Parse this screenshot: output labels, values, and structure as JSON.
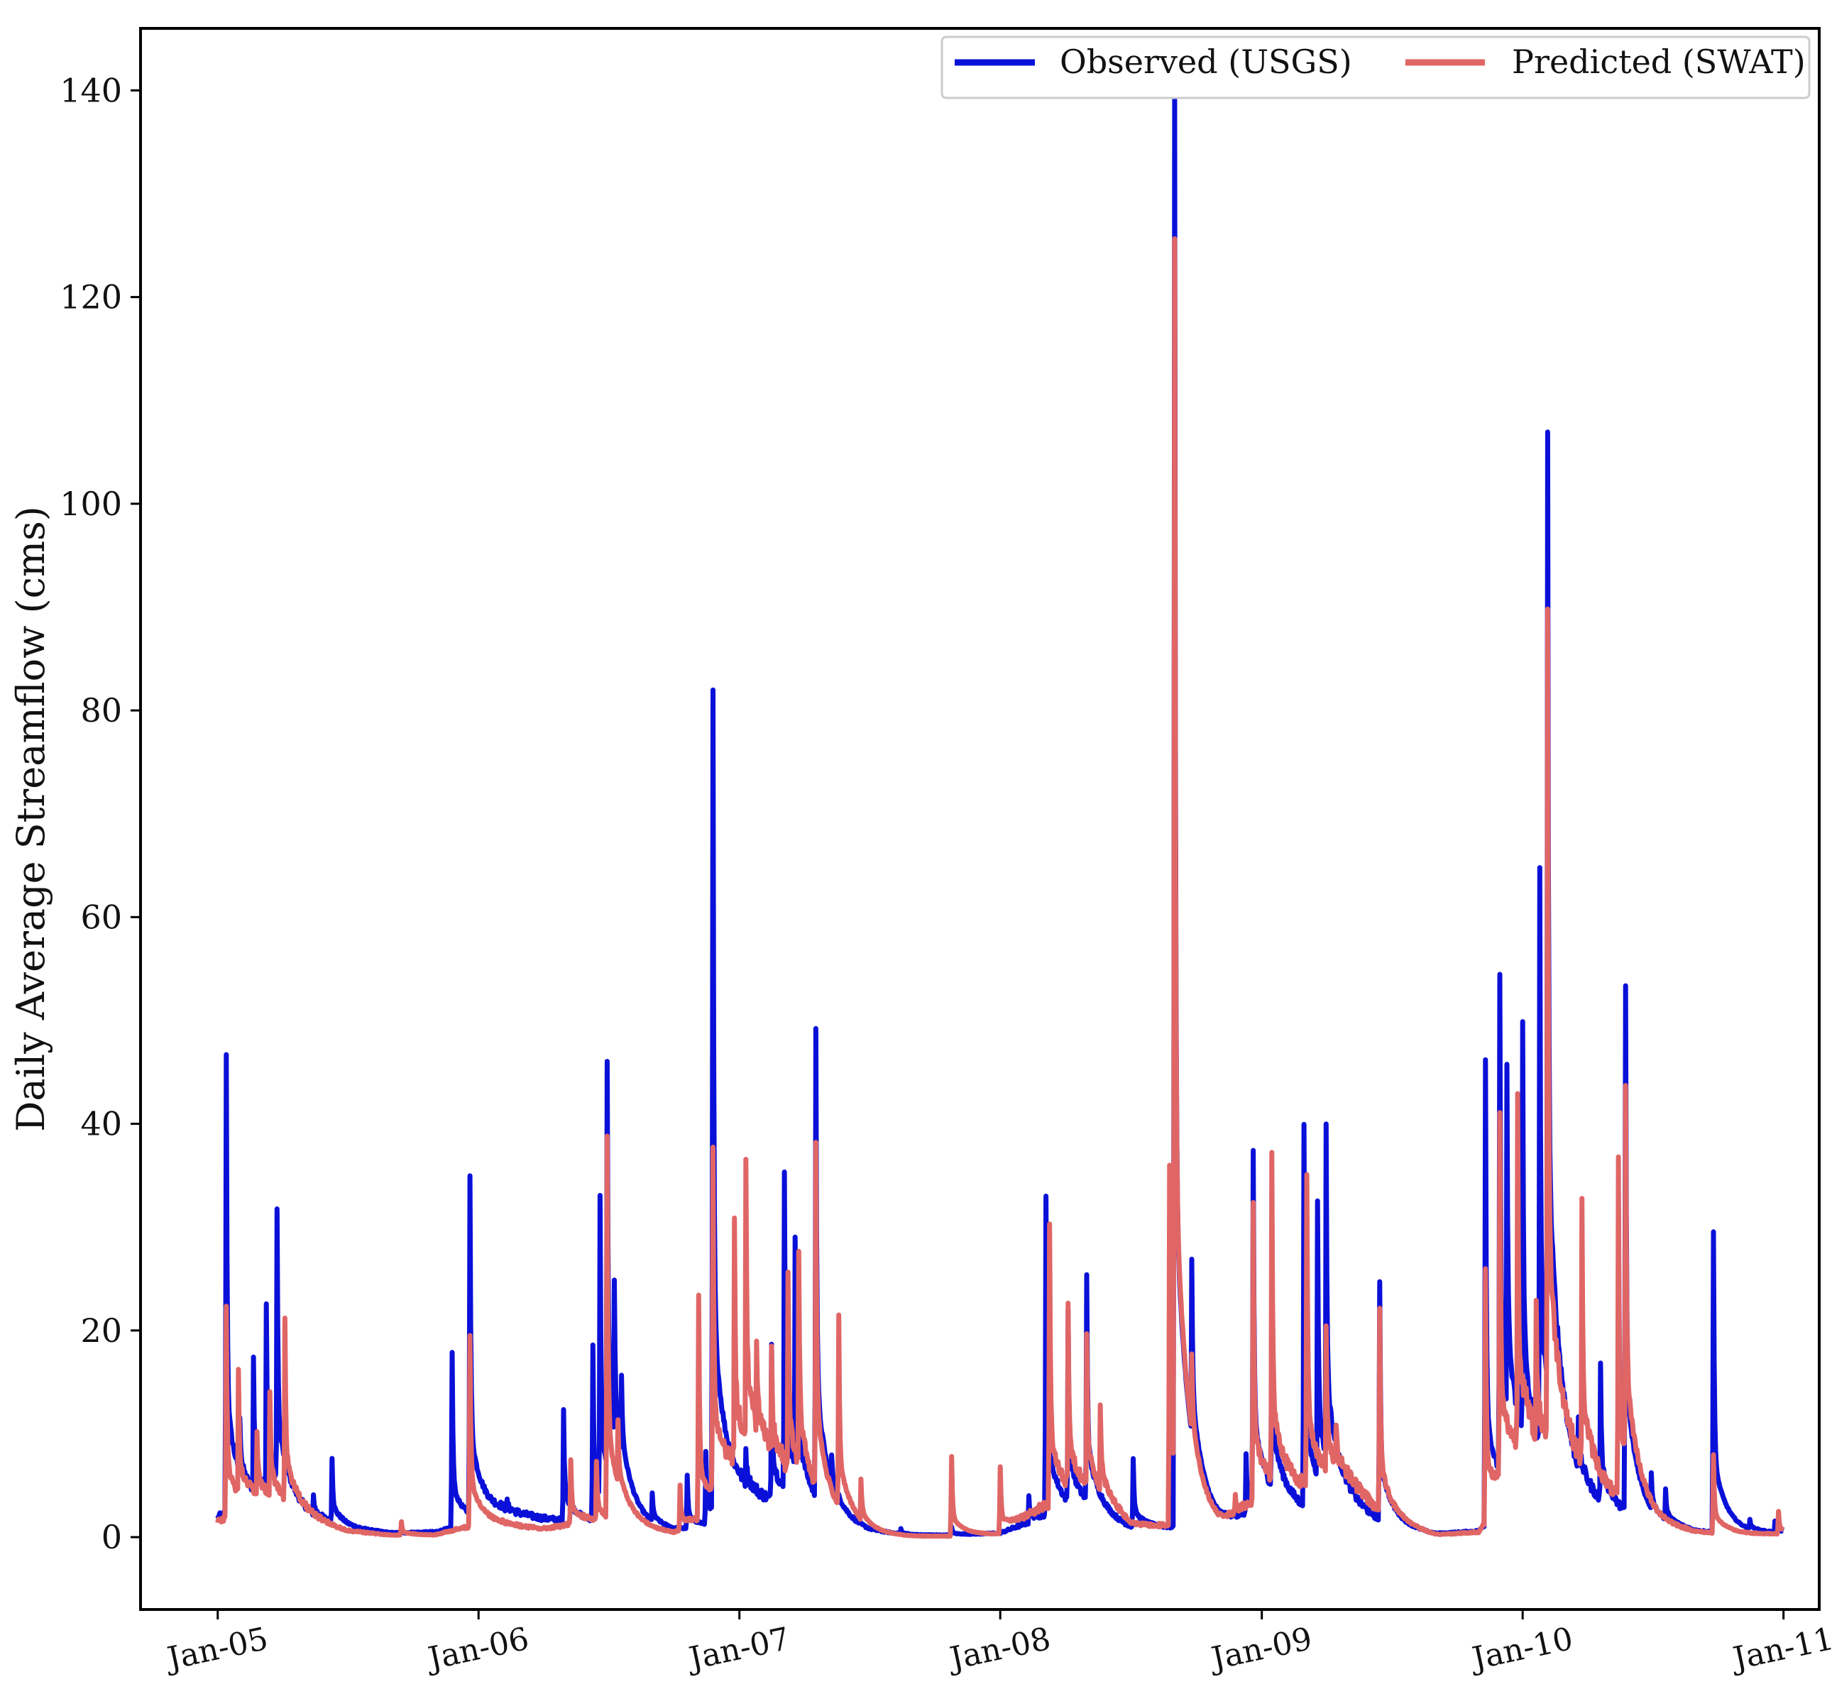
{
  "chart_data": {
    "type": "line",
    "title": "",
    "xlabel": "",
    "ylabel": "Daily Average Streamflow (cms)",
    "x_ticks": [
      "Jan-05",
      "Jan-06",
      "Jan-07",
      "Jan-08",
      "Jan-09",
      "Jan-10",
      "Jan-11"
    ],
    "y_ticks": [
      "0",
      "20",
      "40",
      "60",
      "80",
      "100",
      "120",
      "140"
    ],
    "xlim": [
      "2004-09-15",
      "2011-02-20"
    ],
    "ylim": [
      -7,
      146
    ],
    "grid": false,
    "legend_position": "top-right",
    "x_tick_rotation_deg": -12,
    "series": [
      {
        "name": "Observed (USGS)",
        "color": "#0a10d8",
        "base": [
          [
            "2005-01-01",
            2.0
          ],
          [
            "2005-03-01",
            3.0
          ],
          [
            "2005-05-01",
            2.0
          ],
          [
            "2005-07-01",
            0.8
          ],
          [
            "2005-09-01",
            0.4
          ],
          [
            "2005-11-01",
            0.5
          ],
          [
            "2005-12-15",
            1.2
          ],
          [
            "2006-02-01",
            2.3
          ],
          [
            "2006-04-01",
            1.8
          ],
          [
            "2006-06-01",
            1.4
          ],
          [
            "2006-08-01",
            0.9
          ],
          [
            "2006-10-01",
            0.6
          ],
          [
            "2006-11-15",
            1.0
          ],
          [
            "2007-01-01",
            3.8
          ],
          [
            "2007-03-01",
            3.2
          ],
          [
            "2007-05-01",
            1.6
          ],
          [
            "2007-07-01",
            0.6
          ],
          [
            "2007-09-01",
            0.2
          ],
          [
            "2007-11-01",
            0.2
          ],
          [
            "2008-01-01",
            0.4
          ],
          [
            "2008-03-01",
            2.0
          ],
          [
            "2008-05-01",
            2.2
          ],
          [
            "2008-07-01",
            0.8
          ],
          [
            "2008-09-01",
            0.9
          ],
          [
            "2008-11-01",
            0.9
          ],
          [
            "2009-01-01",
            3.0
          ],
          [
            "2009-03-01",
            2.5
          ],
          [
            "2009-05-01",
            3.0
          ],
          [
            "2009-07-01",
            1.0
          ],
          [
            "2009-09-01",
            0.3
          ],
          [
            "2009-11-01",
            0.6
          ],
          [
            "2010-01-01",
            5.5
          ],
          [
            "2010-03-01",
            4.5
          ],
          [
            "2010-05-01",
            2.5
          ],
          [
            "2010-07-01",
            1.0
          ],
          [
            "2010-09-01",
            0.5
          ],
          [
            "2010-11-01",
            0.4
          ],
          [
            "2011-01-01",
            0.4
          ]
        ],
        "events": [
          [
            "2005-01-13",
            46.5
          ],
          [
            "2005-02-01",
            8.0
          ],
          [
            "2005-02-20",
            15.5
          ],
          [
            "2005-03-10",
            20.5
          ],
          [
            "2005-03-25",
            29.0
          ],
          [
            "2005-05-15",
            3.5
          ],
          [
            "2005-06-10",
            7.5
          ],
          [
            "2005-11-25",
            17.8
          ],
          [
            "2005-12-20",
            33.8
          ],
          [
            "2006-02-10",
            3.0
          ],
          [
            "2006-04-30",
            12.3
          ],
          [
            "2006-06-10",
            18.5
          ],
          [
            "2006-06-20",
            30.3
          ],
          [
            "2006-06-30",
            40.3
          ],
          [
            "2006-07-10",
            15.8
          ],
          [
            "2006-07-20",
            8.5
          ],
          [
            "2006-09-01",
            3.5
          ],
          [
            "2006-10-20",
            6.0
          ],
          [
            "2006-11-15",
            8.0
          ],
          [
            "2006-11-25",
            80.8
          ],
          [
            "2007-01-10",
            7.0
          ],
          [
            "2007-02-15",
            18.8
          ],
          [
            "2007-03-05",
            34.0
          ],
          [
            "2007-03-20",
            25.0
          ],
          [
            "2007-04-18",
            47.5
          ],
          [
            "2007-05-10",
            4.0
          ],
          [
            "2007-08-15",
            0.8
          ],
          [
            "2007-10-25",
            1.0
          ],
          [
            "2008-02-10",
            4.0
          ],
          [
            "2008-03-05",
            32.8
          ],
          [
            "2008-04-05",
            20.5
          ],
          [
            "2008-05-01",
            24.0
          ],
          [
            "2008-07-05",
            7.5
          ],
          [
            "2008-09-01",
            140.0
          ],
          [
            "2008-09-25",
            17.8
          ],
          [
            "2008-12-10",
            8.0
          ],
          [
            "2008-12-20",
            36.3
          ],
          [
            "2009-01-15",
            26.0
          ],
          [
            "2009-03-01",
            39.0
          ],
          [
            "2009-03-20",
            29.5
          ],
          [
            "2009-04-01",
            34.5
          ],
          [
            "2009-06-15",
            24.3
          ],
          [
            "2009-11-10",
            46.3
          ],
          [
            "2009-11-30",
            51.0
          ],
          [
            "2009-12-10",
            37.5
          ],
          [
            "2010-01-01",
            44.5
          ],
          [
            "2010-01-25",
            61.0
          ],
          [
            "2010-02-05",
            97.2
          ],
          [
            "2010-03-20",
            9.0
          ],
          [
            "2010-04-20",
            16.0
          ],
          [
            "2010-05-25",
            52.8
          ],
          [
            "2010-06-30",
            4.5
          ],
          [
            "2010-07-20",
            3.8
          ],
          [
            "2010-09-25",
            29.5
          ],
          [
            "2010-11-15",
            1.3
          ],
          [
            "2010-12-20",
            1.5
          ]
        ]
      },
      {
        "name": "Predicted (SWAT)",
        "color": "#e06666",
        "base": [
          [
            "2005-01-01",
            1.5
          ],
          [
            "2005-03-01",
            3.5
          ],
          [
            "2005-05-01",
            2.0
          ],
          [
            "2005-07-01",
            0.6
          ],
          [
            "2005-09-01",
            0.2
          ],
          [
            "2005-11-01",
            0.2
          ],
          [
            "2005-12-15",
            1.0
          ],
          [
            "2006-02-01",
            1.2
          ],
          [
            "2006-04-01",
            0.8
          ],
          [
            "2006-06-01",
            1.5
          ],
          [
            "2006-08-01",
            1.0
          ],
          [
            "2006-10-01",
            0.4
          ],
          [
            "2006-11-15",
            2.0
          ],
          [
            "2007-01-01",
            7.0
          ],
          [
            "2007-03-01",
            6.0
          ],
          [
            "2007-05-01",
            1.6
          ],
          [
            "2007-07-01",
            0.3
          ],
          [
            "2007-09-01",
            0.1
          ],
          [
            "2007-11-01",
            0.1
          ],
          [
            "2008-01-01",
            0.3
          ],
          [
            "2008-03-01",
            3.0
          ],
          [
            "2008-05-01",
            4.0
          ],
          [
            "2008-07-01",
            1.0
          ],
          [
            "2008-09-01",
            1.2
          ],
          [
            "2008-11-01",
            0.8
          ],
          [
            "2009-01-01",
            4.0
          ],
          [
            "2009-03-01",
            4.5
          ],
          [
            "2009-05-01",
            5.0
          ],
          [
            "2009-07-01",
            1.5
          ],
          [
            "2009-09-01",
            0.2
          ],
          [
            "2009-11-01",
            0.5
          ],
          [
            "2010-01-01",
            8.0
          ],
          [
            "2010-03-01",
            7.0
          ],
          [
            "2010-05-01",
            4.0
          ],
          [
            "2010-07-01",
            1.5
          ],
          [
            "2010-09-01",
            0.5
          ],
          [
            "2010-11-01",
            0.3
          ],
          [
            "2011-01-01",
            0.3
          ]
        ],
        "events": [
          [
            "2005-01-13",
            22.5
          ],
          [
            "2005-01-30",
            14.5
          ],
          [
            "2005-02-25",
            9.5
          ],
          [
            "2005-03-15",
            13.5
          ],
          [
            "2005-04-05",
            19.8
          ],
          [
            "2005-09-15",
            1.5
          ],
          [
            "2005-12-20",
            19.5
          ],
          [
            "2006-05-10",
            7.5
          ],
          [
            "2006-06-15",
            7.0
          ],
          [
            "2006-06-30",
            38.0
          ],
          [
            "2006-07-15",
            7.0
          ],
          [
            "2006-10-10",
            5.0
          ],
          [
            "2006-11-05",
            23.3
          ],
          [
            "2006-11-25",
            36.3
          ],
          [
            "2006-12-25",
            28.8
          ],
          [
            "2007-01-10",
            34.5
          ],
          [
            "2007-01-25",
            15.5
          ],
          [
            "2007-02-15",
            15.8
          ],
          [
            "2007-03-10",
            25.0
          ],
          [
            "2007-03-25",
            25.0
          ],
          [
            "2007-04-18",
            35.8
          ],
          [
            "2007-05-20",
            19.5
          ],
          [
            "2007-06-20",
            4.5
          ],
          [
            "2007-10-25",
            7.8
          ],
          [
            "2008-01-01",
            6.8
          ],
          [
            "2008-03-10",
            30.5
          ],
          [
            "2008-04-05",
            20.8
          ],
          [
            "2008-05-01",
            18.0
          ],
          [
            "2008-05-20",
            11.0
          ],
          [
            "2008-08-25",
            36.0
          ],
          [
            "2008-09-01",
            119.5
          ],
          [
            "2008-09-25",
            8.5
          ],
          [
            "2008-11-25",
            3.5
          ],
          [
            "2008-12-20",
            32.0
          ],
          [
            "2009-01-15",
            35.5
          ],
          [
            "2009-03-05",
            35.0
          ],
          [
            "2009-04-01",
            18.5
          ],
          [
            "2009-04-15",
            9.0
          ],
          [
            "2009-06-15",
            22.0
          ],
          [
            "2009-11-10",
            25.8
          ],
          [
            "2009-11-30",
            39.5
          ],
          [
            "2009-12-25",
            40.5
          ],
          [
            "2010-01-20",
            20.0
          ],
          [
            "2010-02-05",
            87.5
          ],
          [
            "2010-03-25",
            30.5
          ],
          [
            "2010-05-15",
            35.8
          ],
          [
            "2010-05-25",
            39.0
          ],
          [
            "2010-09-25",
            8.0
          ],
          [
            "2010-12-25",
            2.5
          ]
        ]
      }
    ]
  }
}
